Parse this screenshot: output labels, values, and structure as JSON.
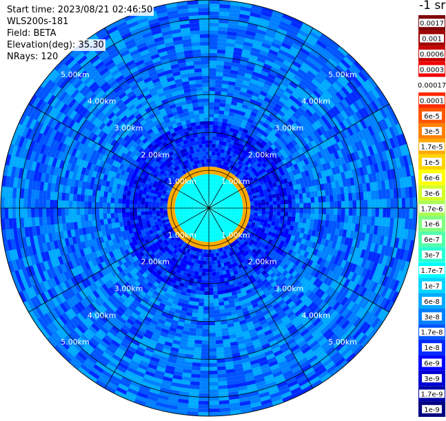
{
  "header": {
    "start_time": "Start time: 2023/08/21 02:46:50",
    "instrument": "WLS200s-181",
    "field": "Field: BETA",
    "elevation": "Elevation(deg): 35.30",
    "nrays": "NRays: 120"
  },
  "colorbar": {
    "title": "-1 sr",
    "entries": [
      {
        "label": "0.0017",
        "color": "#7f0000"
      },
      {
        "label": "0.001",
        "color": "#a00000"
      },
      {
        "label": "0.0006",
        "color": "#c80000"
      },
      {
        "label": "0.0003",
        "color": "#f00000"
      },
      {
        "label": "0.00017",
        "color": "#ffffff"
      },
      {
        "label": "0.0001",
        "color": "#ff2a00"
      },
      {
        "label": "6e-5",
        "color": "#ff5500"
      },
      {
        "label": "3e-5",
        "color": "#ff8000"
      },
      {
        "label": "1.7e-5",
        "color": "#ffaa00"
      },
      {
        "label": "1e-5",
        "color": "#ffd400"
      },
      {
        "label": "6e-6",
        "color": "#ffff00"
      },
      {
        "label": "3e-6",
        "color": "#d4ff2a"
      },
      {
        "label": "1.7e-6",
        "color": "#aaff55"
      },
      {
        "label": "1e-6",
        "color": "#80ff80"
      },
      {
        "label": "6e-7",
        "color": "#55ffaa"
      },
      {
        "label": "3e-7",
        "color": "#2affd4"
      },
      {
        "label": "1.7e-7",
        "color": "#00ffff"
      },
      {
        "label": "1e-7",
        "color": "#00d4ff"
      },
      {
        "label": "6e-8",
        "color": "#00aaff"
      },
      {
        "label": "3e-8",
        "color": "#0080ff"
      },
      {
        "label": "1.7e-8",
        "color": "#0055ff"
      },
      {
        "label": "1e-8",
        "color": "#002aff"
      },
      {
        "label": "6e-9",
        "color": "#0000ff"
      },
      {
        "label": "3e-9",
        "color": "#0000d4"
      },
      {
        "label": "1.7e-9",
        "color": "#0000aa"
      },
      {
        "label": "1e-9",
        "color": "#000080"
      }
    ]
  },
  "chart_data": {
    "type": "heatmap",
    "projection": "polar PPI",
    "range_unit": "km",
    "max_range_km": 5.5,
    "range_rings_km": [
      1,
      2,
      3,
      4,
      5
    ],
    "ring_labels": [
      "1.00km",
      "2.00km",
      "3.00km",
      "4.00km",
      "5.00km"
    ],
    "azimuth_spokes_deg": [
      0,
      30,
      60,
      90,
      120,
      150,
      180,
      210,
      240,
      270,
      300,
      330
    ],
    "n_rays": 120,
    "color_scale": "log",
    "vmin": 1e-09,
    "vmax": 0.0017,
    "regions": [
      {
        "range_km": [
          0,
          0.95
        ],
        "value": 1.7e-07,
        "description_color": "cyan"
      },
      {
        "range_km": [
          0.95,
          1.15
        ],
        "value": 3e-05,
        "description_color": "orange"
      },
      {
        "range_km": [
          1.15,
          2.3
        ],
        "value": 1e-08,
        "description_color": "blue"
      },
      {
        "range_km": [
          2.3,
          5.5
        ],
        "value": 3e-08,
        "description_color": "light blue"
      }
    ]
  }
}
